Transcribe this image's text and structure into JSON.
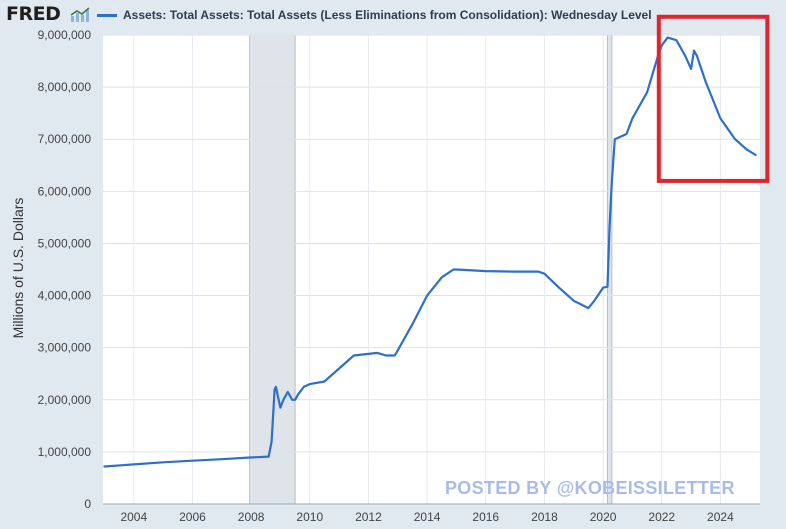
{
  "header": {
    "logo_text": "FRED",
    "logo_icon": "chart-line-icon",
    "legend_label": "Assets: Total Assets: Total Assets (Less Eliminations from Consolidation): Wednesday Level"
  },
  "watermark": "POSTED BY @KOBEISSILETTER",
  "colors": {
    "series": "#2e6fca",
    "plot_bg": "#ffffff",
    "recession": "#dfe3ea",
    "highlight_box": "#e0242c",
    "page_bg": "#e1e9f0"
  },
  "chart_data": {
    "type": "line",
    "title": "",
    "xlabel": "",
    "ylabel": "Millions of U.S. Dollars",
    "xlim": [
      2002.95,
      2025.35
    ],
    "ylim": [
      0,
      9000000
    ],
    "y_ticks": [
      0,
      1000000,
      2000000,
      3000000,
      4000000,
      5000000,
      6000000,
      7000000,
      8000000,
      9000000
    ],
    "y_tick_labels": [
      "0",
      "1,000,000",
      "2,000,000",
      "3,000,000",
      "4,000,000",
      "5,000,000",
      "6,000,000",
      "7,000,000",
      "8,000,000",
      "9,000,000"
    ],
    "x_ticks": [
      2004,
      2006,
      2008,
      2010,
      2012,
      2014,
      2016,
      2018,
      2020,
      2022,
      2024
    ],
    "x_tick_labels": [
      "2004",
      "2006",
      "2008",
      "2010",
      "2012",
      "2014",
      "2016",
      "2018",
      "2020",
      "2022",
      "2024"
    ],
    "grid": true,
    "recessions": [
      [
        2007.95,
        2009.5
      ],
      [
        2020.15,
        2020.3
      ]
    ],
    "highlight": {
      "x": [
        2021.9,
        2025.6
      ],
      "y": [
        6200000,
        9350000
      ]
    },
    "series": [
      {
        "name": "Assets: Total Assets: Total Assets (Less Eliminations from Consolidation): Wednesday Level",
        "x": [
          2003.0,
          2004.0,
          2005.0,
          2006.0,
          2007.0,
          2007.9,
          2008.6,
          2008.7,
          2008.8,
          2008.85,
          2008.9,
          2009.0,
          2009.1,
          2009.25,
          2009.4,
          2009.5,
          2009.6,
          2009.8,
          2010.0,
          2010.5,
          2011.0,
          2011.5,
          2012.0,
          2012.3,
          2012.6,
          2012.9,
          2013.0,
          2013.5,
          2014.0,
          2014.5,
          2014.9,
          2015.0,
          2016.0,
          2017.0,
          2017.8,
          2018.0,
          2018.5,
          2019.0,
          2019.5,
          2019.7,
          2020.0,
          2020.15,
          2020.22,
          2020.3,
          2020.4,
          2020.6,
          2020.8,
          2021.0,
          2021.5,
          2021.9,
          2022.0,
          2022.2,
          2022.5,
          2022.8,
          2023.0,
          2023.1,
          2023.2,
          2023.5,
          2024.0,
          2024.5,
          2024.9,
          2025.2
        ],
        "values": [
          720000,
          760000,
          800000,
          830000,
          860000,
          890000,
          910000,
          1200000,
          2200000,
          2250000,
          2100000,
          1850000,
          2000000,
          2150000,
          2000000,
          2000000,
          2100000,
          2250000,
          2300000,
          2350000,
          2600000,
          2850000,
          2880000,
          2900000,
          2850000,
          2850000,
          2950000,
          3450000,
          4000000,
          4350000,
          4500000,
          4500000,
          4470000,
          4460000,
          4460000,
          4420000,
          4150000,
          3900000,
          3760000,
          3900000,
          4150000,
          4170000,
          5300000,
          6200000,
          7000000,
          7050000,
          7100000,
          7400000,
          7900000,
          8650000,
          8800000,
          8950000,
          8900000,
          8600000,
          8350000,
          8700000,
          8600000,
          8100000,
          7400000,
          7000000,
          6800000,
          6700000
        ]
      }
    ]
  }
}
